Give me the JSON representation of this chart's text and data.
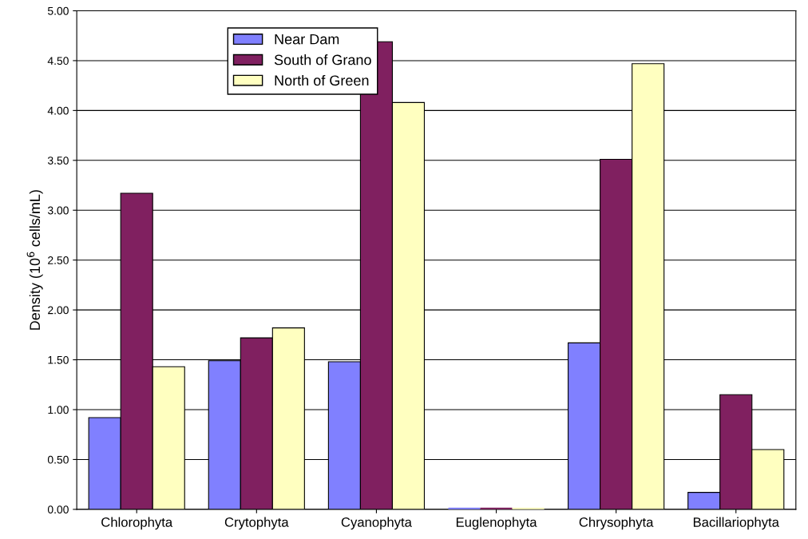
{
  "chart_data": {
    "type": "bar",
    "ylabel": "Density (10$^{6}$ cells/mL)",
    "categories": [
      "Chlorophyta",
      "Crytophyta",
      "Cyanophyta",
      "Euglenophyta",
      "Chrysophyta",
      "Bacillariophyta"
    ],
    "series": [
      {
        "name": "Near Dam",
        "color": "#8080ff",
        "values": [
          0.92,
          1.49,
          1.48,
          0,
          1.67,
          0.17
        ]
      },
      {
        "name": "South of Grano",
        "color": "#802060",
        "values": [
          3.17,
          1.72,
          4.69,
          0,
          3.51,
          1.15
        ]
      },
      {
        "name": "North of Green",
        "color": "#ffffc0",
        "values": [
          1.43,
          1.82,
          4.08,
          0,
          4.47,
          0.6
        ]
      }
    ],
    "ylim": [
      0,
      5
    ],
    "yticks": [
      {
        "value": 0,
        "label": "0.00"
      },
      {
        "value": 0.5,
        "label": "0.50"
      },
      {
        "value": 1,
        "label": "1.00"
      },
      {
        "value": 1.5,
        "label": "1.50"
      },
      {
        "value": 2,
        "label": "2.00"
      },
      {
        "value": 2.5,
        "label": "2.50"
      },
      {
        "value": 3,
        "label": "3.00"
      },
      {
        "value": 3.5,
        "label": "3.50"
      },
      {
        "value": 4,
        "label": "4.00"
      },
      {
        "value": 4.5,
        "label": "4.50"
      },
      {
        "value": 5,
        "label": "5.00"
      }
    ],
    "grid": "y",
    "legend": "top left"
  }
}
